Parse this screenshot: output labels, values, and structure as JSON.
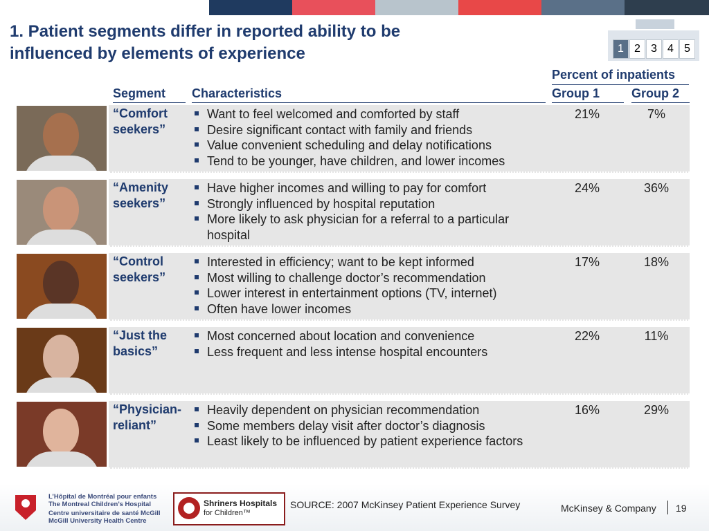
{
  "header": {
    "title": "1. Patient segments differ in reported ability to be influenced by elements of experience",
    "nav": [
      "1",
      "2",
      "3",
      "4",
      "5"
    ]
  },
  "table": {
    "group_header": "Percent of inpatients",
    "columns": [
      "Segment",
      "Characteristics",
      "Group 1",
      "Group 2"
    ],
    "rows": [
      {
        "segment": "“Comfort seekers”",
        "items": [
          "Want to feel welcomed and comforted by staff",
          "Desire significant contact with family and friends",
          "Value convenient scheduling and delay notifications",
          "Tend to be younger, have children, and lower incomes"
        ],
        "group1": "21%",
        "group2": "7%"
      },
      {
        "segment": "“Amenity seekers”",
        "items": [
          "Have higher incomes and willing to pay for comfort",
          "Strongly influenced by hospital reputation",
          "More likely to ask physician for a referral to a particular hospital"
        ],
        "group1": "24%",
        "group2": "36%"
      },
      {
        "segment": "“Control seekers”",
        "items": [
          "Interested in efficiency; want to be kept informed",
          "Most willing to challenge doctor’s recommendation",
          "Lower interest in entertainment options (TV, internet)",
          "Often have lower incomes"
        ],
        "group1": "17%",
        "group2": "18%"
      },
      {
        "segment": "“Just the basics”",
        "items": [
          "Most concerned about location and convenience",
          "Less frequent and less intense hospital encounters"
        ],
        "group1": "22%",
        "group2": "11%"
      },
      {
        "segment": "“Physician-reliant”",
        "items": [
          "Heavily dependent on physician recommendation",
          "Some members delay visit after doctor’s diagnosis",
          "Least likely to be influenced by patient experience factors"
        ],
        "group1": "16%",
        "group2": "29%"
      }
    ]
  },
  "footer": {
    "logo1": [
      "L’Hôpital de Montréal pour enfants",
      "The Montreal Children’s Hospital",
      "Centre universitaire de santé McGill",
      "McGill University Health Centre"
    ],
    "logo2": [
      "Shriners Hospitals",
      "for Children™"
    ],
    "source": "SOURCE: 2007 McKinsey Patient Experience Survey",
    "company": "McKinsey & Company",
    "page": "19"
  }
}
